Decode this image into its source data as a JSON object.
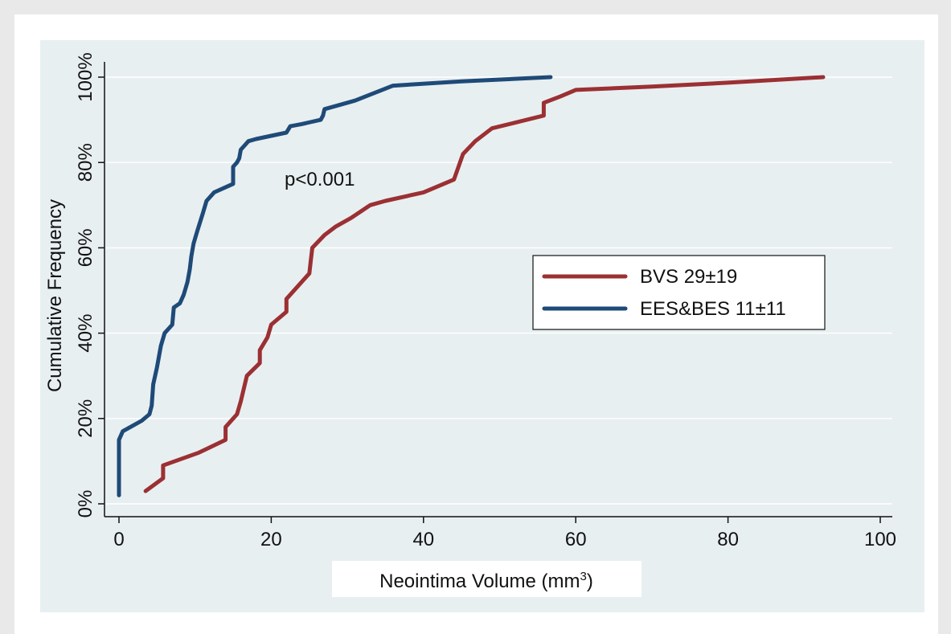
{
  "chart_data": {
    "type": "line",
    "title": "",
    "xlabel": "Neointima Volume (mm",
    "xlabel_sup": "3",
    "xlabel_close": ")",
    "ylabel": "Cumulative Frequency",
    "xlim": [
      0,
      100
    ],
    "ylim": [
      0,
      100
    ],
    "x_ticks": [
      0,
      20,
      40,
      60,
      80,
      100
    ],
    "x_tick_labels": [
      "0",
      "20",
      "40",
      "60",
      "80",
      "100"
    ],
    "y_ticks": [
      0,
      20,
      40,
      60,
      80,
      100
    ],
    "y_tick_labels": [
      "0%",
      "20%",
      "40%",
      "60%",
      "80%",
      "100%"
    ],
    "grid": true,
    "legend_position": "right",
    "annotation": "p<0.001",
    "colors": {
      "plot_bg": "#e8eff1",
      "grid": "#ffffff"
    },
    "series": [
      {
        "name": "BVS 29±19",
        "color": "#9b3033",
        "x": [
          3.5,
          5.8,
          5.8,
          10.5,
          14,
          14,
          15.5,
          16,
          16.8,
          18.5,
          18.5,
          19.5,
          20,
          22,
          22,
          25,
          25.2,
          25.4,
          27,
          28.5,
          30.5,
          33,
          35,
          40,
          44,
          45.2,
          46.8,
          49,
          55.8,
          55.8,
          58,
          60,
          70,
          80,
          92.5
        ],
        "y": [
          3,
          6,
          9,
          12,
          15,
          18,
          21,
          24,
          30,
          33,
          36,
          39,
          42,
          45,
          48,
          54,
          57,
          60,
          63,
          65,
          67,
          70,
          71,
          73,
          76,
          82,
          85,
          88,
          91,
          94,
          95.5,
          97,
          97.8,
          98.7,
          100
        ]
      },
      {
        "name": "EES&BES 11±11",
        "color": "#1f4a78",
        "x": [
          0,
          0,
          0,
          0.5,
          1.5,
          3,
          4,
          4.3,
          4.5,
          5,
          5.5,
          6,
          7,
          7.2,
          8,
          8.5,
          9,
          9.3,
          9.5,
          9.8,
          10.3,
          11,
          11.5,
          12.5,
          15,
          15,
          15.5,
          15.8,
          16,
          16.5,
          17,
          18,
          22,
          22.5,
          24,
          26.5,
          26.8,
          27,
          31,
          36,
          45,
          56.7
        ],
        "y": [
          2,
          10,
          15,
          17,
          18,
          19.5,
          21,
          23,
          28,
          32,
          37,
          40,
          42,
          46,
          47,
          49,
          52,
          55,
          58,
          61,
          64,
          68,
          71,
          73,
          75,
          79,
          80,
          81,
          83,
          84,
          85,
          85.5,
          87,
          88.5,
          89,
          90,
          91,
          92.5,
          94.5,
          98,
          99,
          100
        ]
      }
    ]
  }
}
